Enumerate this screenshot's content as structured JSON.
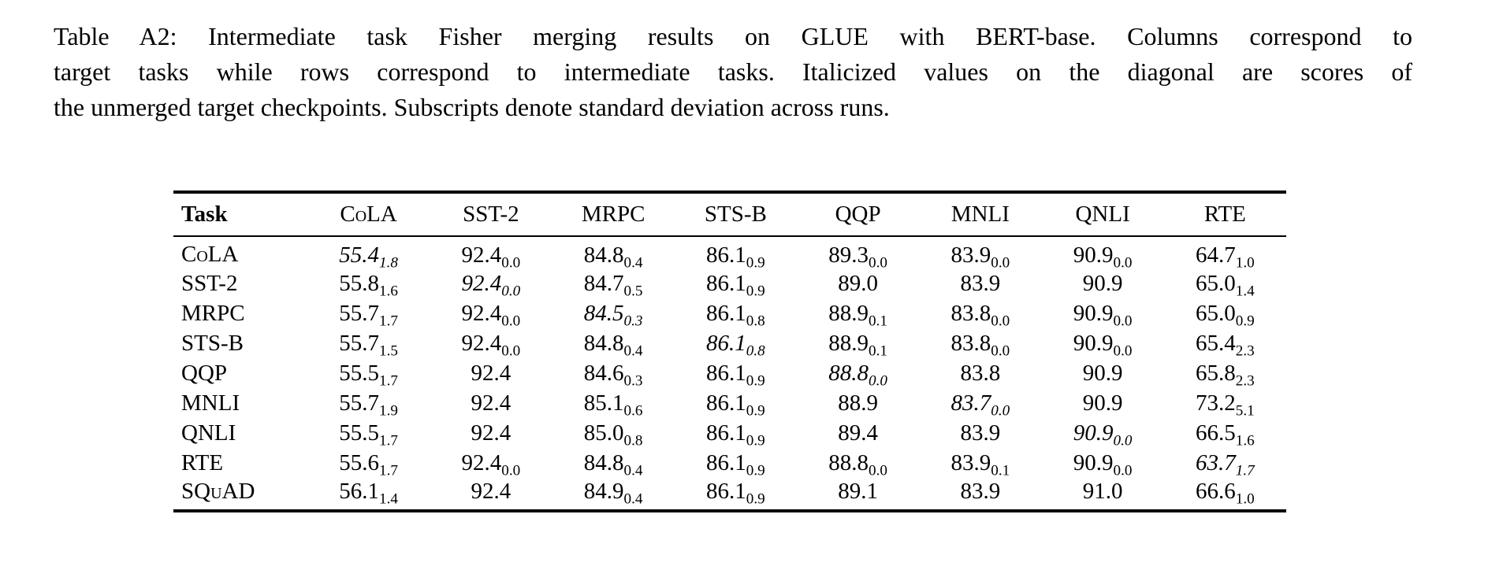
{
  "caption": {
    "lines": [
      "Table A2: Intermediate task Fisher merging results on GLUE with BERT-base. Columns correspond to",
      "target tasks while rows correspond to intermediate tasks. Italicized values on the diagonal are scores of",
      "the unmerged target checkpoints. Subscripts denote standard deviation across runs."
    ]
  },
  "table": {
    "columns": [
      "Task",
      "CoLA",
      "SST-2",
      "MRPC",
      "STS-B",
      "QQP",
      "MNLI",
      "QNLI",
      "RTE"
    ],
    "rows": [
      {
        "task": "CoLA",
        "cells": [
          {
            "v": "55.4",
            "s": "1.8",
            "i": true
          },
          {
            "v": "92.4",
            "s": "0.0"
          },
          {
            "v": "84.8",
            "s": "0.4"
          },
          {
            "v": "86.1",
            "s": "0.9"
          },
          {
            "v": "89.3",
            "s": "0.0"
          },
          {
            "v": "83.9",
            "s": "0.0"
          },
          {
            "v": "90.9",
            "s": "0.0"
          },
          {
            "v": "64.7",
            "s": "1.0"
          }
        ]
      },
      {
        "task": "SST-2",
        "cells": [
          {
            "v": "55.8",
            "s": "1.6"
          },
          {
            "v": "92.4",
            "s": "0.0",
            "i": true
          },
          {
            "v": "84.7",
            "s": "0.5"
          },
          {
            "v": "86.1",
            "s": "0.9"
          },
          {
            "v": "89.0"
          },
          {
            "v": "83.9"
          },
          {
            "v": "90.9"
          },
          {
            "v": "65.0",
            "s": "1.4"
          }
        ]
      },
      {
        "task": "MRPC",
        "cells": [
          {
            "v": "55.7",
            "s": "1.7"
          },
          {
            "v": "92.4",
            "s": "0.0"
          },
          {
            "v": "84.5",
            "s": "0.3",
            "i": true
          },
          {
            "v": "86.1",
            "s": "0.8"
          },
          {
            "v": "88.9",
            "s": "0.1"
          },
          {
            "v": "83.8",
            "s": "0.0"
          },
          {
            "v": "90.9",
            "s": "0.0"
          },
          {
            "v": "65.0",
            "s": "0.9"
          }
        ]
      },
      {
        "task": "STS-B",
        "cells": [
          {
            "v": "55.7",
            "s": "1.5"
          },
          {
            "v": "92.4",
            "s": "0.0"
          },
          {
            "v": "84.8",
            "s": "0.4"
          },
          {
            "v": "86.1",
            "s": "0.8",
            "i": true
          },
          {
            "v": "88.9",
            "s": "0.1"
          },
          {
            "v": "83.8",
            "s": "0.0"
          },
          {
            "v": "90.9",
            "s": "0.0"
          },
          {
            "v": "65.4",
            "s": "2.3"
          }
        ]
      },
      {
        "task": "QQP",
        "cells": [
          {
            "v": "55.5",
            "s": "1.7"
          },
          {
            "v": "92.4"
          },
          {
            "v": "84.6",
            "s": "0.3"
          },
          {
            "v": "86.1",
            "s": "0.9"
          },
          {
            "v": "88.8",
            "s": "0.0",
            "i": true
          },
          {
            "v": "83.8"
          },
          {
            "v": "90.9"
          },
          {
            "v": "65.8",
            "s": "2.3"
          }
        ]
      },
      {
        "task": "MNLI",
        "cells": [
          {
            "v": "55.7",
            "s": "1.9"
          },
          {
            "v": "92.4"
          },
          {
            "v": "85.1",
            "s": "0.6"
          },
          {
            "v": "86.1",
            "s": "0.9"
          },
          {
            "v": "88.9"
          },
          {
            "v": "83.7",
            "s": "0.0",
            "i": true
          },
          {
            "v": "90.9"
          },
          {
            "v": "73.2",
            "s": "5.1"
          }
        ]
      },
      {
        "task": "QNLI",
        "cells": [
          {
            "v": "55.5",
            "s": "1.7"
          },
          {
            "v": "92.4"
          },
          {
            "v": "85.0",
            "s": "0.8"
          },
          {
            "v": "86.1",
            "s": "0.9"
          },
          {
            "v": "89.4"
          },
          {
            "v": "83.9"
          },
          {
            "v": "90.9",
            "s": "0.0",
            "i": true
          },
          {
            "v": "66.5",
            "s": "1.6"
          }
        ]
      },
      {
        "task": "RTE",
        "cells": [
          {
            "v": "55.6",
            "s": "1.7"
          },
          {
            "v": "92.4",
            "s": "0.0"
          },
          {
            "v": "84.8",
            "s": "0.4"
          },
          {
            "v": "86.1",
            "s": "0.9"
          },
          {
            "v": "88.8",
            "s": "0.0"
          },
          {
            "v": "83.9",
            "s": "0.1"
          },
          {
            "v": "90.9",
            "s": "0.0"
          },
          {
            "v": "63.7",
            "s": "1.7",
            "i": true
          }
        ]
      },
      {
        "task": "SQuAD",
        "cells": [
          {
            "v": "56.1",
            "s": "1.4"
          },
          {
            "v": "92.4"
          },
          {
            "v": "84.9",
            "s": "0.4"
          },
          {
            "v": "86.1",
            "s": "0.9"
          },
          {
            "v": "89.1"
          },
          {
            "v": "83.9"
          },
          {
            "v": "91.0"
          },
          {
            "v": "66.6",
            "s": "1.0"
          }
        ]
      }
    ]
  }
}
